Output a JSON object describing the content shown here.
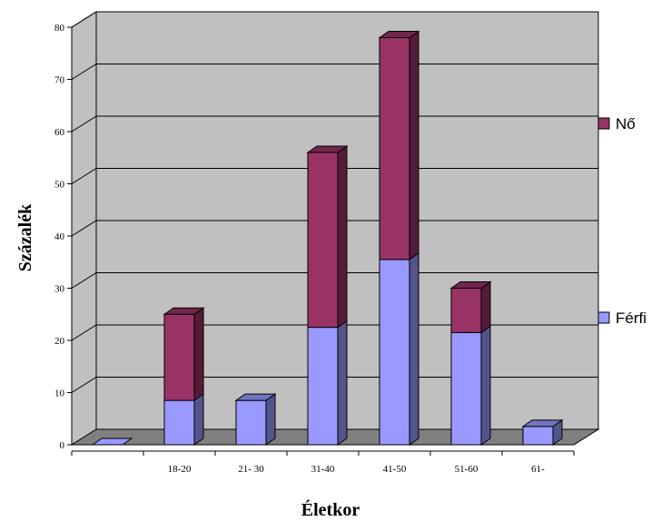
{
  "chart_data": {
    "type": "bar",
    "stacked": true,
    "three_d": true,
    "categories": [
      "",
      "18-20",
      "21- 30",
      "31-40",
      "41-50",
      "51-60",
      "61-"
    ],
    "series": [
      {
        "name": "Férfi",
        "values": [
          0,
          8.5,
          8.5,
          22.5,
          35.5,
          21.5,
          3.5
        ]
      },
      {
        "name": "Nő",
        "values": [
          0,
          16.5,
          0,
          33.5,
          42.5,
          8.5,
          0
        ]
      }
    ],
    "xlabel": "Életkor",
    "ylabel": "Százalék",
    "ylim": [
      0,
      80
    ],
    "yticks": [
      0,
      10,
      20,
      30,
      40,
      50,
      60,
      70,
      80
    ],
    "grid": true,
    "legend_position": "right",
    "colors": {
      "Férfi": "#9999ff",
      "Nő": "#993366",
      "wall": "#c0c0c0",
      "floor": "#808080",
      "grid": "#000000"
    }
  }
}
